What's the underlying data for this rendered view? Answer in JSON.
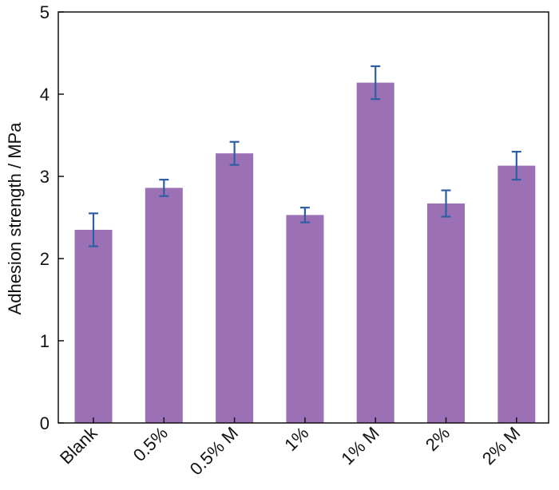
{
  "chart_data": {
    "type": "bar",
    "title": "",
    "xlabel": "",
    "ylabel": "Adhesion strength / MPa",
    "categories": [
      "Blank",
      "0.5%",
      "0.5% M",
      "1%",
      "1% M",
      "2%",
      "2% M"
    ],
    "values": [
      2.35,
      2.86,
      3.28,
      2.53,
      4.14,
      2.67,
      3.13
    ],
    "error_bars": [
      0.2,
      0.1,
      0.14,
      0.09,
      0.2,
      0.16,
      0.17
    ],
    "ylim": [
      0,
      5
    ],
    "yticks": [
      0,
      1,
      2,
      3,
      4,
      5
    ],
    "grid": false,
    "legend": "none",
    "colors": {
      "bar": "#9b70b4",
      "error_bar": "#2f5fa3",
      "axis": "#111111"
    }
  }
}
